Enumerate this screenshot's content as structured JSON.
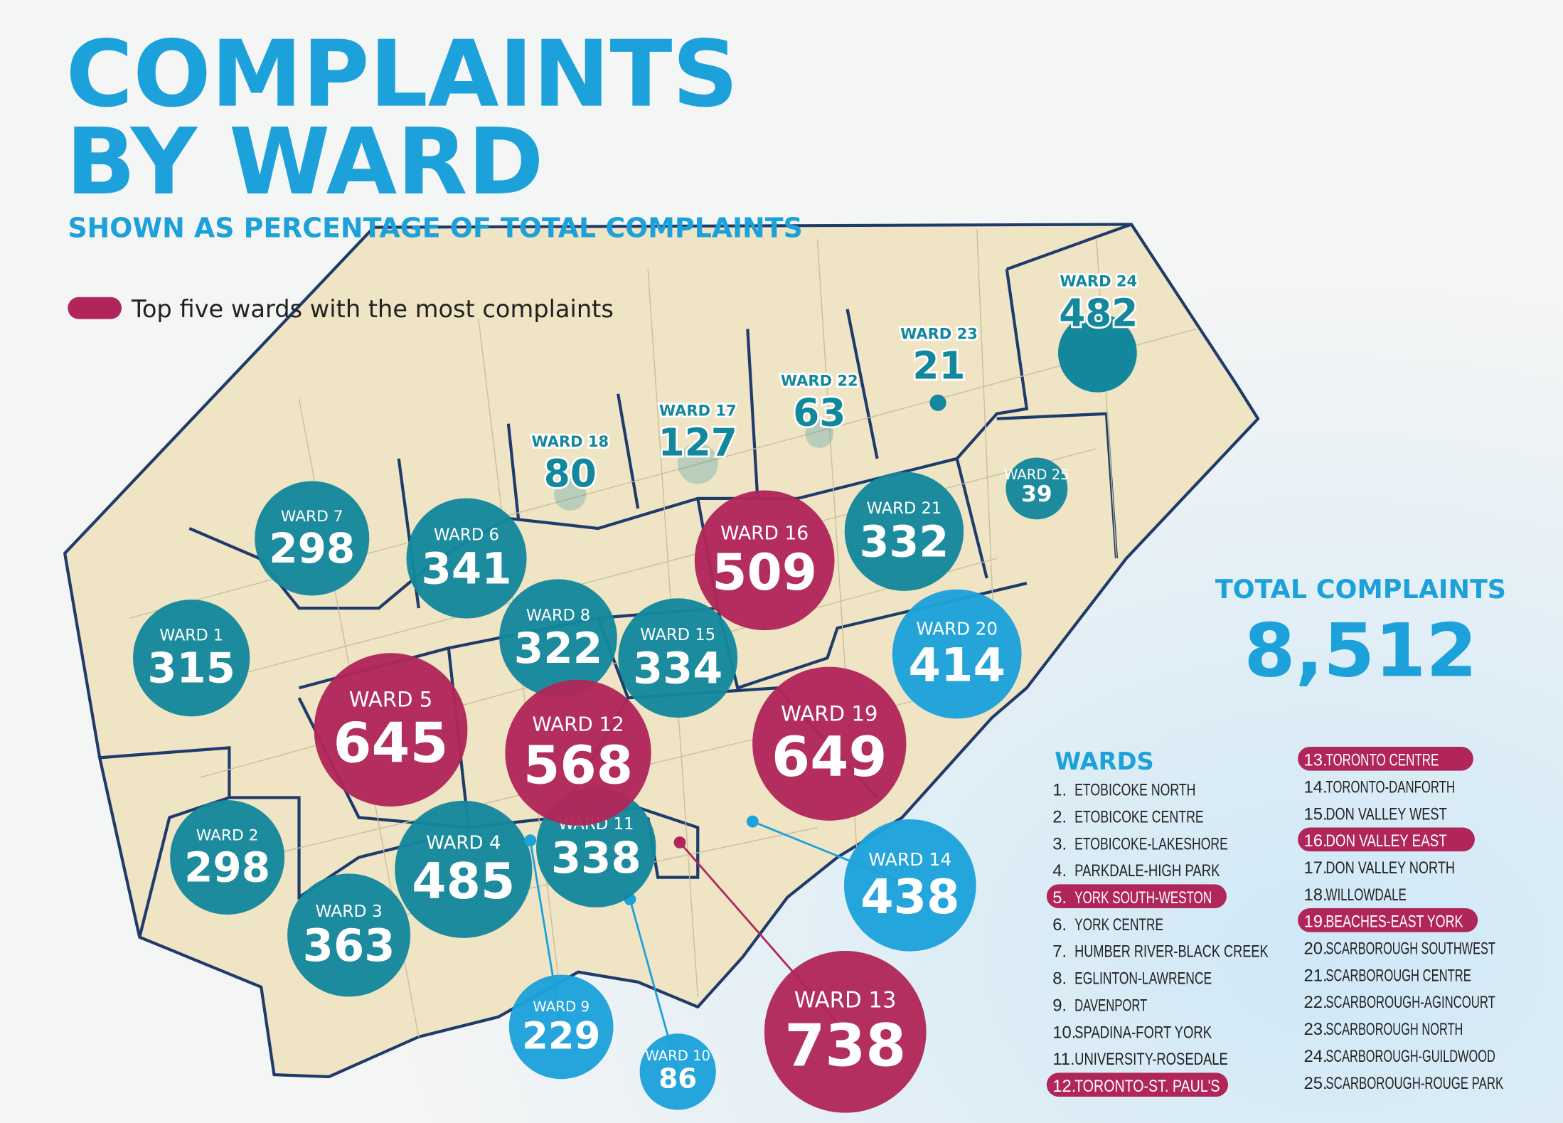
{
  "title_lines": [
    "COMPLAINTS",
    "BY WARD"
  ],
  "subtitle": "SHOWN AS PERCENTAGE OF TOTAL COMPLAINTS",
  "legend": "Top five wards with the most complaints",
  "total": {
    "label": "TOTAL COMPLAINTS",
    "value": "8,512"
  },
  "wards": [
    {
      "label": "WARD 1",
      "value": 315,
      "color": "#13879b"
    },
    {
      "label": "WARD 2",
      "value": 298,
      "color": "#13879b"
    },
    {
      "label": "WARD 3",
      "value": 363,
      "color": "#13879b"
    },
    {
      "label": "WARD 4",
      "value": 485,
      "color": "#13879b"
    },
    {
      "label": "WARD 5",
      "value": 645,
      "color": "#b0265a"
    },
    {
      "label": "WARD 6",
      "value": 341,
      "color": "#13879b"
    },
    {
      "label": "WARD 7",
      "value": 298,
      "color": "#13879b"
    },
    {
      "label": "WARD 8",
      "value": 322,
      "color": "#13879b"
    },
    {
      "label": "WARD 9",
      "value": 229,
      "color": "#1ca1da"
    },
    {
      "label": "WARD 10",
      "value": 86,
      "color": "#1ca1da"
    },
    {
      "label": "WARD 11",
      "value": 338,
      "color": "#13879b"
    },
    {
      "label": "WARD 12",
      "value": 568,
      "color": "#b0265a"
    },
    {
      "label": "WARD 13",
      "value": 738,
      "color": "#b0265a"
    },
    {
      "label": "WARD 14",
      "value": 438,
      "color": "#1ca1da"
    },
    {
      "label": "WARD 15",
      "value": 334,
      "color": "#13879b"
    },
    {
      "label": "WARD 16",
      "value": 509,
      "color": "#b0265a"
    },
    {
      "label": "WARD 17",
      "value": 127,
      "color": "#13879b"
    },
    {
      "label": "WARD 18",
      "value": 80,
      "color": "#13879b"
    },
    {
      "label": "WARD 19",
      "value": 649,
      "color": "#b0265a"
    },
    {
      "label": "WARD 20",
      "value": 414,
      "color": "#1ca1da"
    },
    {
      "label": "WARD 21",
      "value": 332,
      "color": "#13879b"
    },
    {
      "label": "WARD 22",
      "value": 63,
      "color": "#13879b"
    },
    {
      "label": "WARD 23",
      "value": 21,
      "color": "#13879b"
    },
    {
      "label": "WARD 24",
      "value": 482,
      "color": "#13879b"
    },
    {
      "label": "WARD 25",
      "value": 39,
      "color": "#13879b"
    }
  ],
  "ward_list": {
    "heading": "WARDS",
    "items": [
      {
        "number": "1.",
        "name": "ETOBICOKE NORTH",
        "highlight": false
      },
      {
        "number": "2.",
        "name": "ETOBICOKE CENTRE",
        "highlight": false
      },
      {
        "number": "3.",
        "name": "ETOBICOKE-LAKESHORE",
        "highlight": false
      },
      {
        "number": "4.",
        "name": "PARKDALE-HIGH PARK",
        "highlight": false
      },
      {
        "number": "5.",
        "name": "YORK SOUTH-WESTON",
        "highlight": true
      },
      {
        "number": "6.",
        "name": "YORK CENTRE",
        "highlight": false
      },
      {
        "number": "7.",
        "name": "HUMBER RIVER-BLACK CREEK",
        "highlight": false
      },
      {
        "number": "8.",
        "name": "EGLINTON-LAWRENCE",
        "highlight": false
      },
      {
        "number": "9.",
        "name": "DAVENPORT",
        "highlight": false
      },
      {
        "number": "10.",
        "name": "SPADINA-FORT YORK",
        "highlight": false
      },
      {
        "number": "11.",
        "name": "UNIVERSITY-ROSEDALE",
        "highlight": false
      },
      {
        "number": "12.",
        "name": "TORONTO-ST. PAUL'S",
        "highlight": true
      },
      {
        "number": "13.",
        "name": "TORONTO CENTRE",
        "highlight": true
      },
      {
        "number": "14.",
        "name": "TORONTO-DANFORTH",
        "highlight": false
      },
      {
        "number": "15.",
        "name": "DON VALLEY WEST",
        "highlight": false
      },
      {
        "number": "16.",
        "name": "DON VALLEY EAST",
        "highlight": true
      },
      {
        "number": "17.",
        "name": "DON VALLEY NORTH",
        "highlight": false
      },
      {
        "number": "18.",
        "name": "WILLOWDALE",
        "highlight": false
      },
      {
        "number": "19.",
        "name": "BEACHES-EAST YORK",
        "highlight": true
      },
      {
        "number": "20.",
        "name": "SCARBOROUGH SOUTHWEST",
        "highlight": false
      },
      {
        "number": "21.",
        "name": "SCARBOROUGH CENTRE",
        "highlight": false
      },
      {
        "number": "22.",
        "name": "SCARBOROUGH-AGINCOURT",
        "highlight": false
      },
      {
        "number": "23.",
        "name": "SCARBOROUGH NORTH",
        "highlight": false
      },
      {
        "number": "24.",
        "name": "SCARBOROUGH-GUILDWOOD",
        "highlight": false
      },
      {
        "number": "25.",
        "name": "SCARBOROUGH-ROUGE PARK",
        "highlight": false
      }
    ]
  }
}
